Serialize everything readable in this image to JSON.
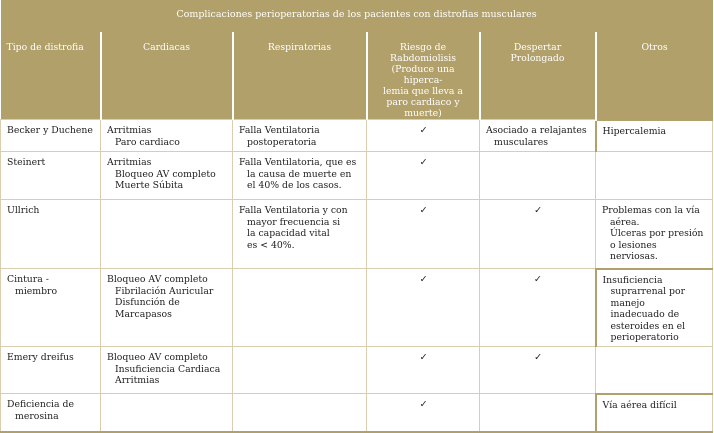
{
  "title": "Complicaciones perioperatorias de los pacientes con distrofias musculares",
  "headers": [
    [
      "Tipo de distrofia"
    ],
    [
      "Cardiacas"
    ],
    [
      "Respiratorias"
    ],
    [
      "Riesgo de",
      "Rabdomiolisis",
      "(Produce una hiperca-",
      "lemia que lleva a",
      "paro cardiaco y",
      "muerte)"
    ],
    [
      "Despertar",
      "Prolongado"
    ],
    [
      "Otros"
    ]
  ],
  "check_symbol": "✓",
  "rows": [
    {
      "tipo": [
        "Becker y Duchene"
      ],
      "cardiacas": [
        "Arritmias",
        "Paro cardiaco"
      ],
      "respiratorias": [
        "Falla Ventilatoria",
        "postoperatoria"
      ],
      "rabdomiolisis": true,
      "despertar": [
        "Asociado a relajantes",
        "musculares"
      ],
      "despertar_check": false,
      "otros": [
        "Hipercalemia"
      ]
    },
    {
      "tipo": [
        " Steinert"
      ],
      "cardiacas": [
        "Arritmias",
        "Bloqueo AV completo",
        "Muerte Súbita"
      ],
      "respiratorias": [
        "Falla Ventilatoria, que es",
        "la causa de muerte en",
        "el 40% de los casos."
      ],
      "rabdomiolisis": true,
      "despertar": [],
      "despertar_check": false,
      "otros": []
    },
    {
      "tipo": [
        "Ullrich"
      ],
      "cardiacas": [],
      "respiratorias": [
        "Falla Ventilatoria y con",
        "mayor frecuencia si",
        "la capacidad vital",
        "es < 40%."
      ],
      "rabdomiolisis": true,
      "despertar": [],
      "despertar_check": true,
      "otros": [
        "Problemas con la vía",
        "aérea.",
        "Úlceras por presión",
        "o lesiones",
        "nerviosas."
      ]
    },
    {
      "tipo": [
        "Cintura -",
        "miembro"
      ],
      "cardiacas": [
        "Bloqueo AV completo",
        "Fibrilación Auricular",
        "Disfunción de",
        "Marcapasos"
      ],
      "respiratorias": [],
      "rabdomiolisis": true,
      "despertar": [],
      "despertar_check": true,
      "otros": [
        "Insuficiencia",
        "suprarrenal por",
        "manejo",
        "inadecuado de",
        "esteroides en el",
        "perioperatorio"
      ]
    },
    {
      "tipo": [
        "Emery dreifus"
      ],
      "cardiacas": [
        "Bloqueo AV completo",
        "Insuficiencia Cardiaca",
        "Arritmias"
      ],
      "respiratorias": [],
      "rabdomiolisis": true,
      "despertar": [],
      "despertar_check": true,
      "otros": []
    },
    {
      "tipo": [
        "Deficiencia de",
        "merosina"
      ],
      "cardiacas": [],
      "respiratorias": [],
      "rabdomiolisis": true,
      "despertar": [],
      "despertar_check": false,
      "otros": [
        "Vía aérea difícil"
      ]
    }
  ]
}
